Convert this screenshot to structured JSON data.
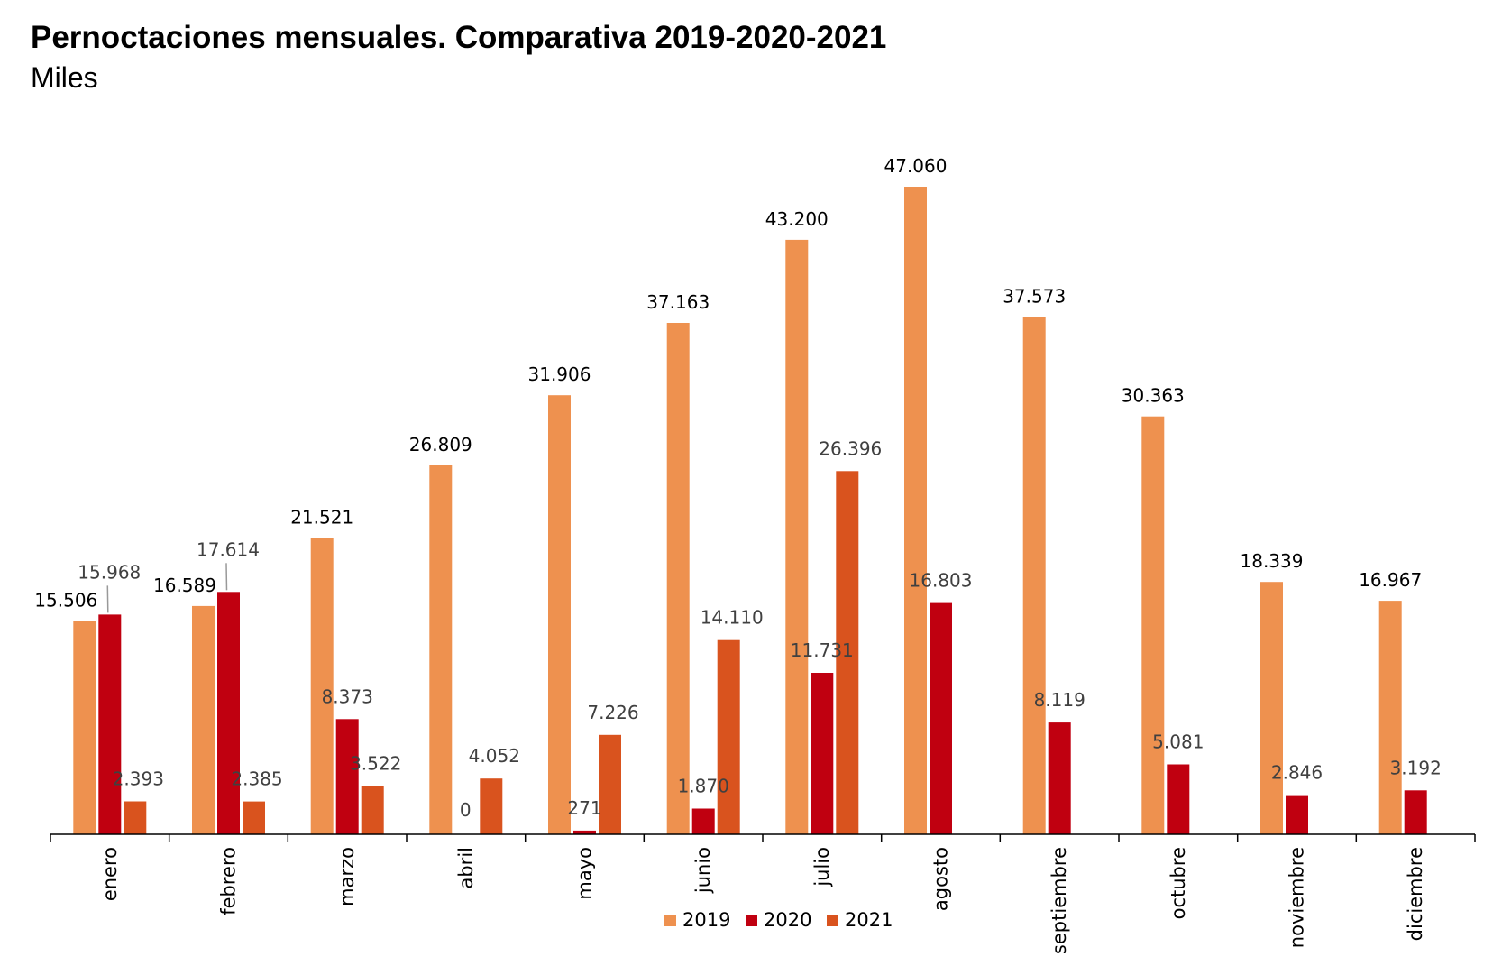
{
  "title": "Pernoctaciones mensuales. Comparativa 2019-2020-2021",
  "subtitle": "Miles",
  "chart_data": {
    "type": "bar",
    "categories": [
      "enero",
      "febrero",
      "marzo",
      "abril",
      "mayo",
      "junio",
      "julio",
      "agosto",
      "septiembre",
      "octubre",
      "noviembre",
      "diciembre"
    ],
    "series": [
      {
        "name": "2019",
        "color": "#EE914F",
        "values": [
          15506,
          16589,
          21521,
          26809,
          31906,
          37163,
          43200,
          47060,
          37573,
          30363,
          18339,
          16967
        ],
        "labels": [
          "15.506",
          "16.589",
          "21.521",
          "26.809",
          "31.906",
          "37.163",
          "43.200",
          "47.060",
          "37.573",
          "30.363",
          "18.339",
          "16.967"
        ]
      },
      {
        "name": "2020",
        "color": "#C00010",
        "values": [
          15968,
          17614,
          8373,
          0,
          271,
          1870,
          11731,
          16803,
          8119,
          5081,
          2846,
          3192
        ],
        "labels": [
          "15.968",
          "17.614",
          "8.373",
          "0",
          "271",
          "1.870",
          "11.731",
          "16.803",
          "8.119",
          "5.081",
          "2.846",
          "3.192"
        ]
      },
      {
        "name": "2021",
        "color": "#D9531E",
        "values": [
          2393,
          2385,
          3522,
          4052,
          7226,
          14110,
          26396,
          null,
          null,
          null,
          null,
          null
        ],
        "labels": [
          "2.393",
          "2.385",
          "3.522",
          "4.052",
          "7.226",
          "14.110",
          "26.396",
          null,
          null,
          null,
          null,
          null
        ]
      }
    ],
    "ylim": [
      0,
      47060
    ],
    "grid": false,
    "legend_position": "bottom"
  }
}
